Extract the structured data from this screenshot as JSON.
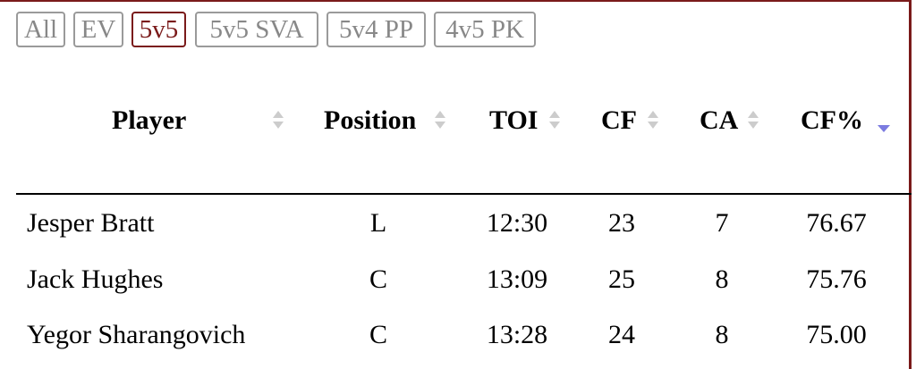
{
  "tabs": [
    {
      "label": "All",
      "selected": false
    },
    {
      "label": "EV",
      "selected": false
    },
    {
      "label": "5v5",
      "selected": true
    },
    {
      "label": "5v5 SVA",
      "selected": false
    },
    {
      "label": "5v4 PP",
      "selected": false
    },
    {
      "label": "4v5 PK",
      "selected": false
    }
  ],
  "table": {
    "columns": [
      "Player",
      "Position",
      "TOI",
      "CF",
      "CA",
      "CF%"
    ],
    "sorted_column": 5,
    "rows": [
      [
        "Jesper Bratt",
        "L",
        "12:30",
        "23",
        "7",
        "76.67"
      ],
      [
        "Jack Hughes",
        "C",
        "13:09",
        "25",
        "8",
        "75.76"
      ],
      [
        "Yegor Sharangovich",
        "C",
        "13:28",
        "24",
        "8",
        "75.00"
      ]
    ]
  }
}
